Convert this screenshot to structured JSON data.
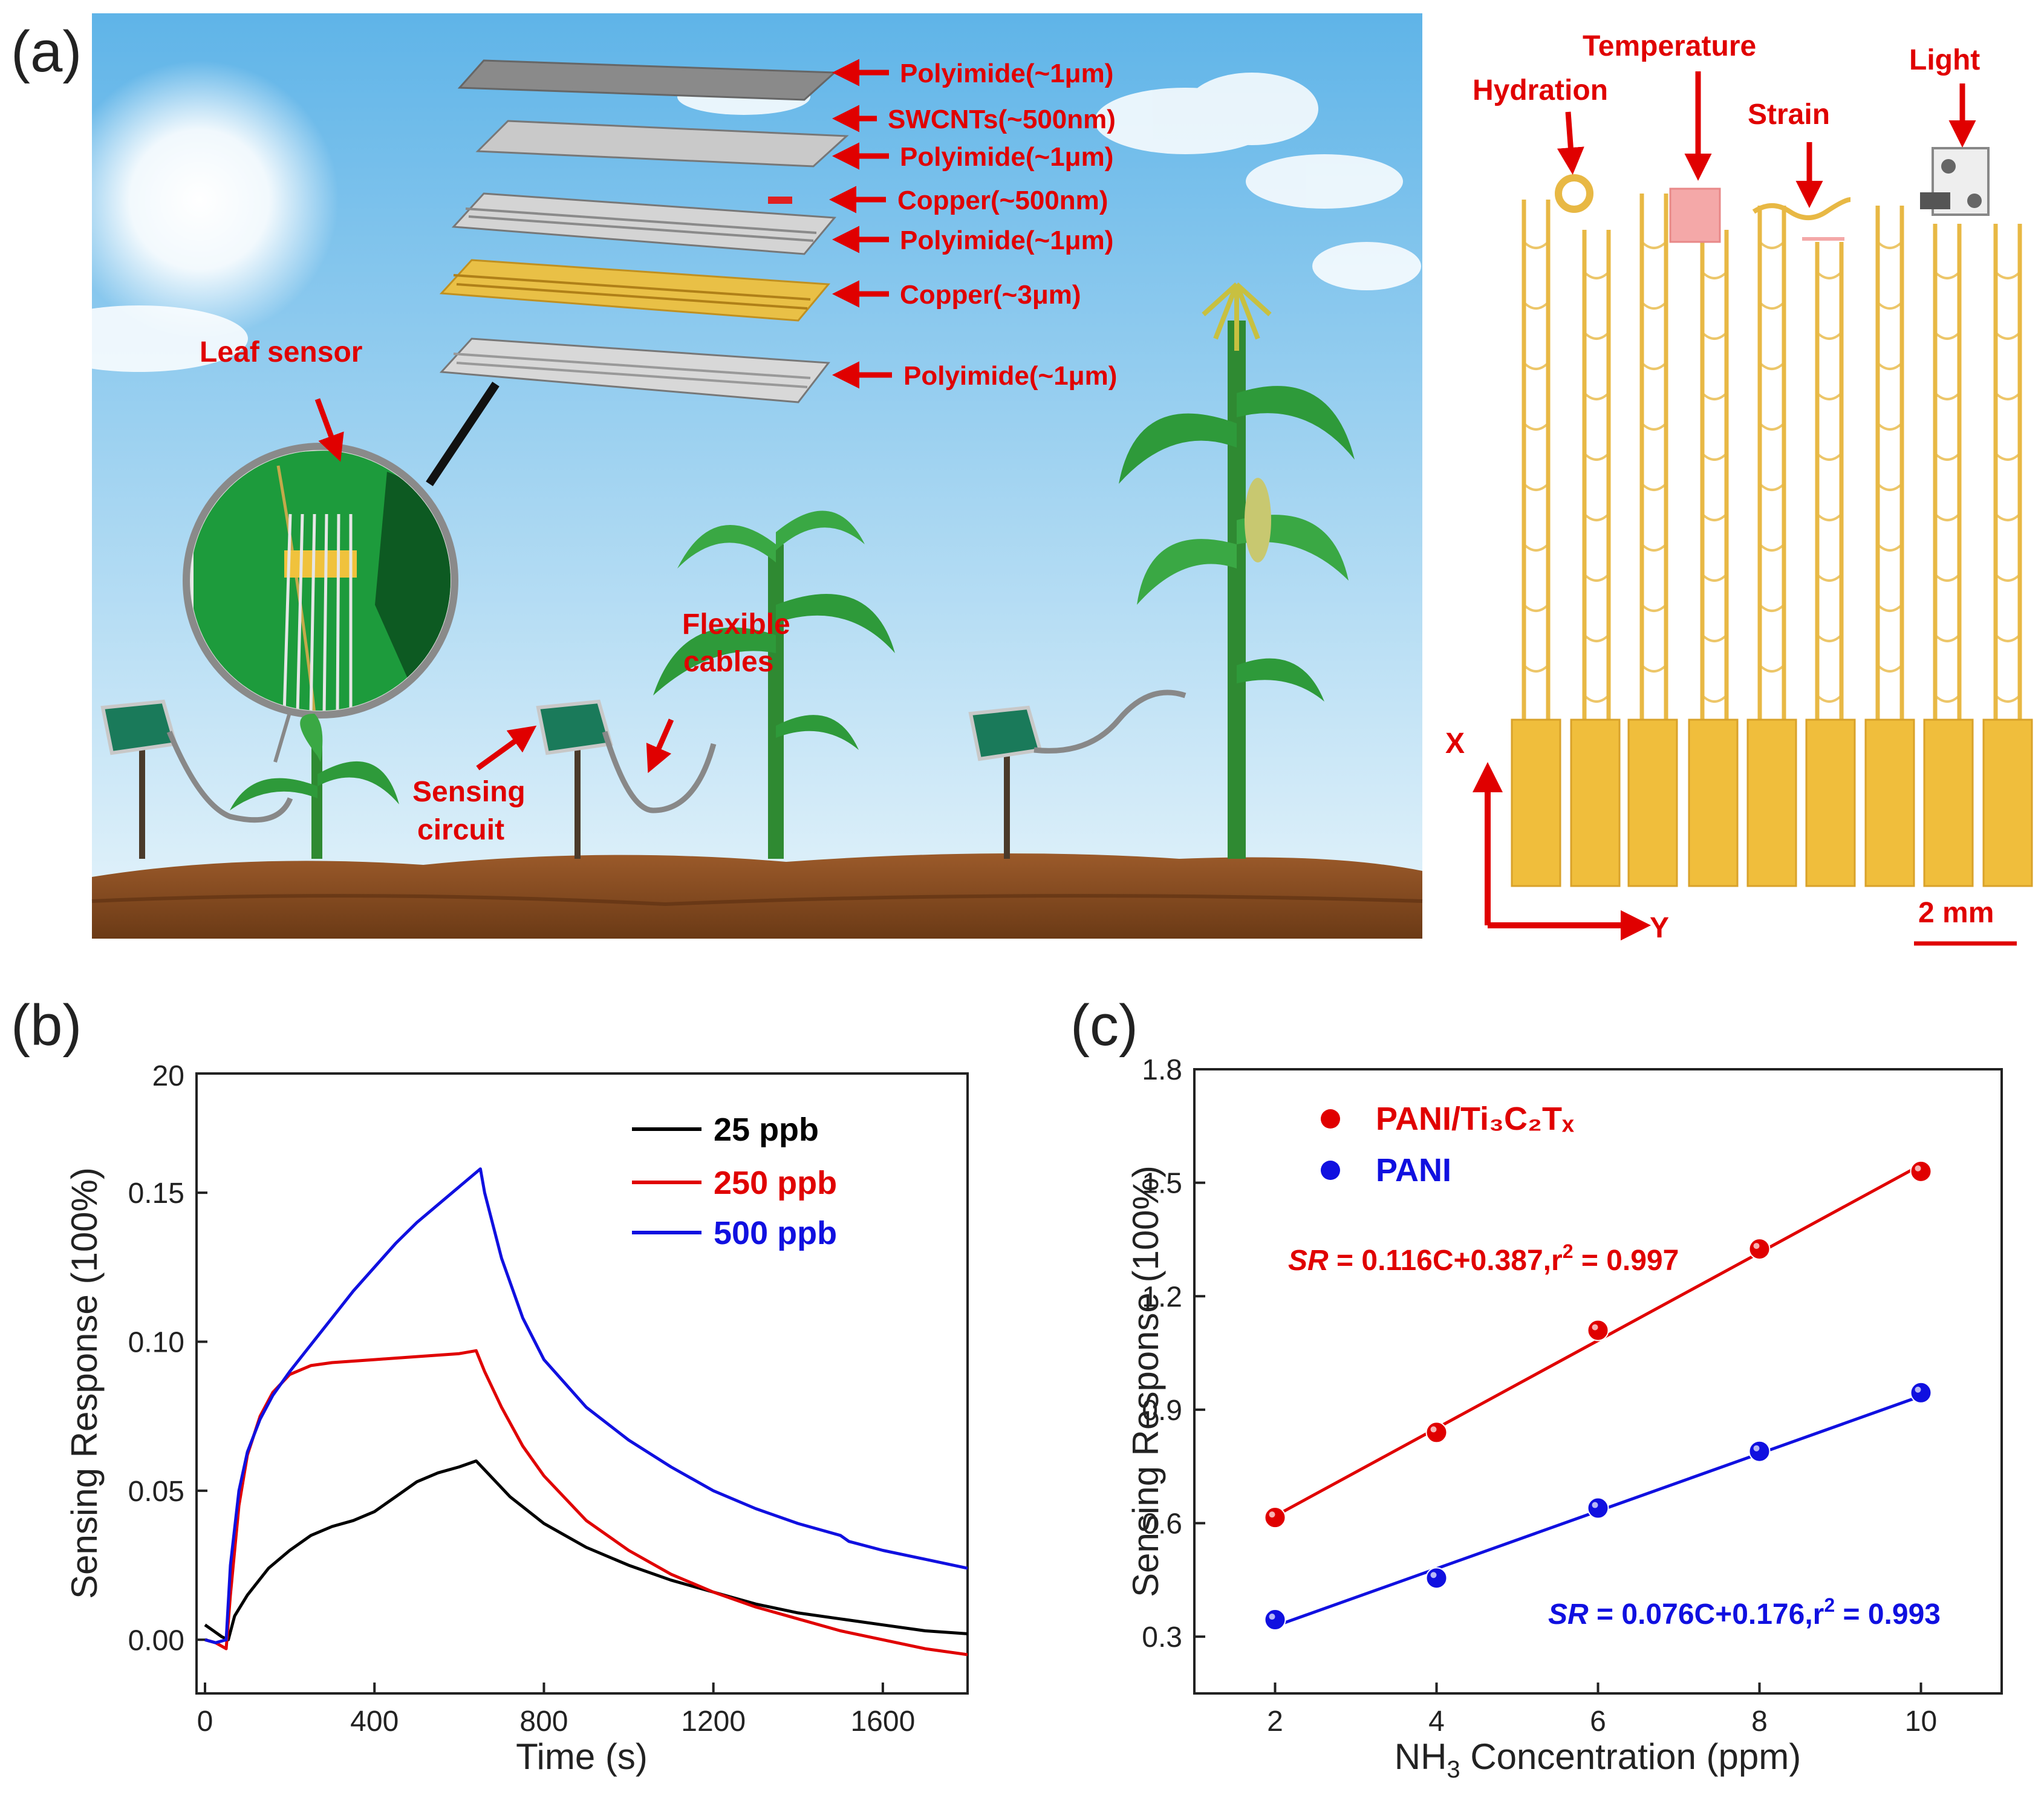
{
  "panels": {
    "a": "(a)",
    "b": "(b)",
    "c": "(c)"
  },
  "illustration": {
    "layers": [
      "Polyimide(~1μm)",
      "SWCNTs(~500nm)",
      "Polyimide(~1μm)",
      "Copper(~500nm)",
      "Polyimide(~1μm)",
      "Copper(~3μm)",
      "Polyimide(~1μm)"
    ],
    "leaf_sensor": "Leaf sensor",
    "flexible_cables": [
      "Flexible",
      "cables"
    ],
    "sensing_circuit": [
      "Sensing",
      "circuit"
    ]
  },
  "layout_diagram": {
    "hydration": "Hydration",
    "temperature": "Temperature",
    "strain": "Strain",
    "light": "Light",
    "x_axis": "X",
    "y_axis": "Y",
    "scale": "2 mm"
  },
  "colors": {
    "red": "#e00000",
    "blue": "#1010e0",
    "black": "#000000",
    "gold": "#f0be3c"
  },
  "chart_data": [
    {
      "type": "line",
      "panel": "b",
      "xlabel": "Time (s)",
      "ylabel": "Sensing Response (100%)",
      "xlim": [
        -20,
        1800
      ],
      "ylim": [
        -0.018,
        0.19
      ],
      "xticks": [
        0,
        400,
        800,
        1200,
        1600
      ],
      "yticks": [
        0.0,
        0.05,
        0.1,
        0.15
      ],
      "yticklabels": [
        "0.00",
        "0.05",
        "0.10",
        "0.15"
      ],
      "top_tick_label": "20",
      "series": [
        {
          "name": "25 ppb",
          "color": "#000000",
          "x": [
            0,
            20,
            40,
            55,
            70,
            100,
            150,
            200,
            250,
            300,
            350,
            400,
            450,
            500,
            550,
            600,
            640,
            680,
            720,
            800,
            900,
            1000,
            1100,
            1200,
            1300,
            1400,
            1500,
            1600,
            1700,
            1800
          ],
          "y": [
            0.005,
            0.003,
            0.001,
            0.0,
            0.008,
            0.015,
            0.024,
            0.03,
            0.035,
            0.038,
            0.04,
            0.043,
            0.048,
            0.053,
            0.056,
            0.058,
            0.06,
            0.054,
            0.048,
            0.039,
            0.031,
            0.025,
            0.02,
            0.016,
            0.012,
            0.009,
            0.007,
            0.005,
            0.003,
            0.002
          ]
        },
        {
          "name": "250 ppb",
          "color": "#e00000",
          "x": [
            0,
            25,
            50,
            60,
            80,
            100,
            130,
            160,
            200,
            250,
            300,
            400,
            500,
            600,
            640,
            660,
            700,
            750,
            800,
            900,
            1000,
            1100,
            1200,
            1300,
            1400,
            1500,
            1600,
            1700,
            1800
          ],
          "y": [
            0.0,
            -0.001,
            -0.003,
            0.015,
            0.045,
            0.062,
            0.075,
            0.083,
            0.089,
            0.092,
            0.093,
            0.094,
            0.095,
            0.096,
            0.097,
            0.09,
            0.078,
            0.065,
            0.055,
            0.04,
            0.03,
            0.022,
            0.016,
            0.011,
            0.007,
            0.003,
            0.0,
            -0.003,
            -0.005
          ]
        },
        {
          "name": "500 ppb",
          "color": "#1010e0",
          "x": [
            0,
            25,
            50,
            60,
            80,
            100,
            130,
            160,
            200,
            250,
            300,
            350,
            400,
            450,
            500,
            550,
            600,
            650,
            660,
            700,
            750,
            800,
            900,
            1000,
            1100,
            1200,
            1300,
            1400,
            1500,
            1520,
            1600,
            1700,
            1800
          ],
          "y": [
            0.0,
            -0.001,
            0.0,
            0.025,
            0.05,
            0.063,
            0.074,
            0.082,
            0.09,
            0.099,
            0.108,
            0.117,
            0.125,
            0.133,
            0.14,
            0.146,
            0.152,
            0.158,
            0.15,
            0.128,
            0.108,
            0.094,
            0.078,
            0.067,
            0.058,
            0.05,
            0.044,
            0.039,
            0.035,
            0.033,
            0.03,
            0.027,
            0.024
          ]
        }
      ]
    },
    {
      "type": "scatter",
      "panel": "c",
      "xlabel_pre": "NH",
      "xlabel_sub": "3",
      "xlabel_post": " Concentration (ppm)",
      "ylabel": "Sensing Response (100%)",
      "xlim": [
        1,
        11
      ],
      "ylim": [
        0.15,
        1.8
      ],
      "xticks": [
        2,
        4,
        6,
        8,
        10
      ],
      "yticks": [
        0.3,
        0.6,
        0.9,
        1.2,
        1.5,
        1.8
      ],
      "yticklabels": [
        "0.3",
        "0.6",
        "0.9",
        "1.2",
        "1.5",
        "1.8"
      ],
      "series": [
        {
          "name": "PANI/Ti₃C₂Tₓ",
          "color": "#e00000",
          "x": [
            2,
            4,
            6,
            8,
            10
          ],
          "y": [
            0.615,
            0.84,
            1.11,
            1.325,
            1.53
          ],
          "fit_slope": 0.116,
          "fit_intercept": 0.387,
          "equation_sr": "SR",
          "equation": " = 0.116C+0.387,r",
          "equation_exp": "2",
          "equation_end": " = 0.997"
        },
        {
          "name": "PANI",
          "color": "#1010e0",
          "x": [
            2,
            4,
            6,
            8,
            10
          ],
          "y": [
            0.345,
            0.455,
            0.64,
            0.79,
            0.945
          ],
          "fit_slope": 0.076,
          "fit_intercept": 0.176,
          "equation_sr": "SR",
          "equation": " = 0.076C+0.176,r",
          "equation_exp": "2",
          "equation_end": " = 0.993"
        }
      ]
    }
  ]
}
